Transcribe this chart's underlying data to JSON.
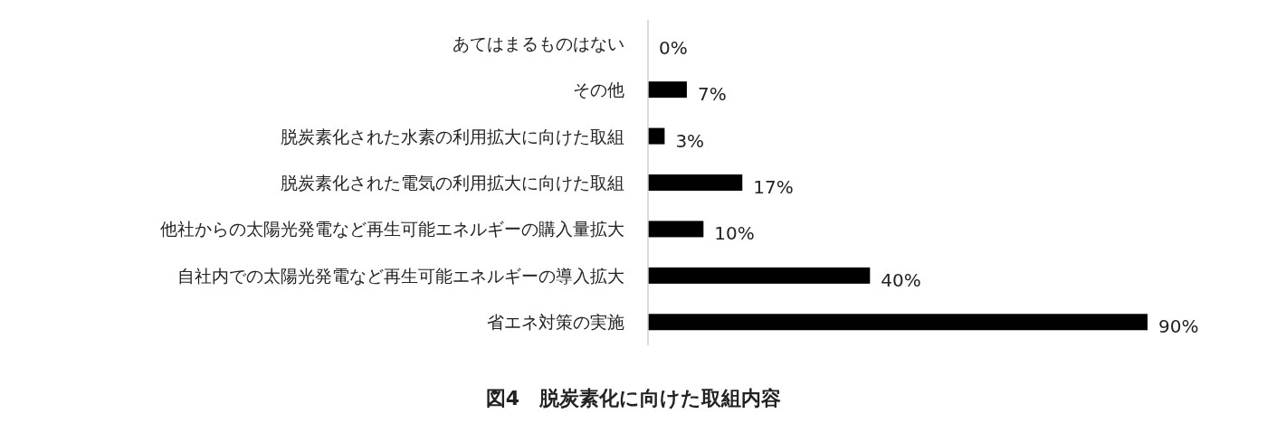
{
  "chart_data": {
    "type": "bar",
    "orientation": "horizontal",
    "title": "図4　脱炭素化に向けた取組内容",
    "categories": [
      "あてはまるものはない",
      "その他",
      "脱炭素化された水素の利用拡大に向けた取組",
      "脱炭素化された電気の利用拡大に向けた取組",
      "他社からの太陽光発電など再生可能エネルギーの購入量拡大",
      "自社内での太陽光発電など再生可能エネルギーの導入拡大",
      "省エネ対策の実施"
    ],
    "values": [
      0,
      7,
      3,
      17,
      10,
      40,
      90
    ],
    "value_labels": [
      "0%",
      "7%",
      "3%",
      "17%",
      "10%",
      "40%",
      "90%"
    ],
    "color": "#000000"
  }
}
